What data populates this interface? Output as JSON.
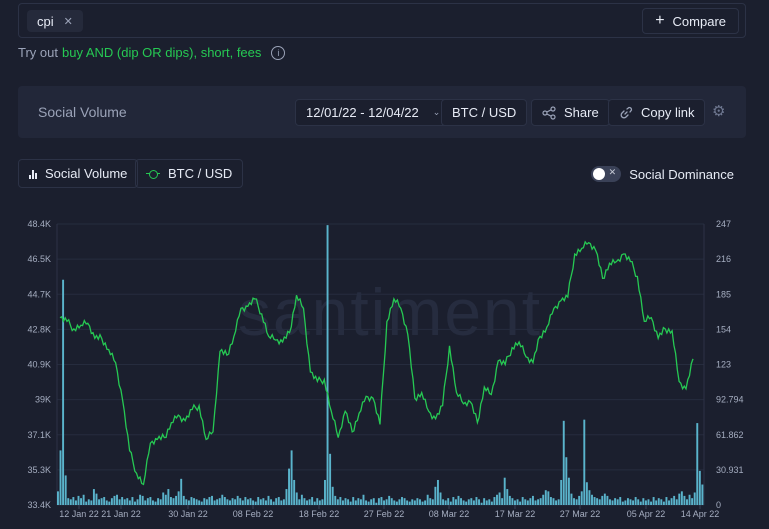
{
  "search": {
    "tag": "cpi",
    "compare_label": "Compare"
  },
  "tryout": {
    "prefix": "Try out",
    "link": "buy AND (dip OR dips), short, fees"
  },
  "panel": {
    "title": "Social Volume",
    "date_range": "12/01/22 - 12/04/22",
    "pair": "BTC / USD",
    "share_label": "Share",
    "copy_link_label": "Copy link"
  },
  "metrics": [
    {
      "label": "Social Volume"
    },
    {
      "label": "BTC / USD"
    }
  ],
  "dominance_label": "Social Dominance",
  "chart_data": {
    "type": "line",
    "title": "",
    "watermark": "santiment",
    "colors": {
      "price": "#26c953",
      "volume": "#5ab4cc"
    },
    "x_ticks": [
      "12 Jan 22",
      "21 Jan 22",
      "30 Jan 22",
      "08 Feb 22",
      "18 Feb 22",
      "27 Feb 22",
      "08 Mar 22",
      "17 Mar 22",
      "27 Mar 22",
      "05 Apr 22",
      "14 Apr 22"
    ],
    "left_axis": {
      "ticks": [
        "48.4K",
        "46.5K",
        "44.7K",
        "42.8K",
        "40.9K",
        "39K",
        "37.1K",
        "35.3K",
        "33.4K"
      ],
      "range": [
        33400,
        48400
      ]
    },
    "right_axis": {
      "ticks": [
        "247",
        "216",
        "185",
        "154",
        "123",
        "92.794",
        "61.862",
        "30.931",
        "0"
      ],
      "range": [
        0,
        247
      ]
    },
    "series": [
      {
        "name": "BTC / USD",
        "axis": "left",
        "x": [
          "12 Jan 22",
          "13 Jan 22",
          "14 Jan 22",
          "15 Jan 22",
          "16 Jan 22",
          "17 Jan 22",
          "18 Jan 22",
          "19 Jan 22",
          "20 Jan 22",
          "21 Jan 22",
          "22 Jan 22",
          "23 Jan 22",
          "24 Jan 22",
          "25 Jan 22",
          "26 Jan 22",
          "27 Jan 22",
          "28 Jan 22",
          "29 Jan 22",
          "30 Jan 22",
          "31 Jan 22",
          "01 Feb 22",
          "02 Feb 22",
          "03 Feb 22",
          "04 Feb 22",
          "05 Feb 22",
          "06 Feb 22",
          "07 Feb 22",
          "08 Feb 22",
          "09 Feb 22",
          "10 Feb 22",
          "11 Feb 22",
          "12 Feb 22",
          "13 Feb 22",
          "14 Feb 22",
          "15 Feb 22",
          "16 Feb 22",
          "17 Feb 22",
          "18 Feb 22",
          "19 Feb 22",
          "20 Feb 22",
          "21 Feb 22",
          "22 Feb 22",
          "23 Feb 22",
          "24 Feb 22",
          "25 Feb 22",
          "26 Feb 22",
          "27 Feb 22",
          "28 Feb 22",
          "01 Mar 22",
          "02 Mar 22",
          "03 Mar 22",
          "04 Mar 22",
          "05 Mar 22",
          "06 Mar 22",
          "07 Mar 22",
          "08 Mar 22",
          "09 Mar 22",
          "10 Mar 22",
          "11 Mar 22",
          "12 Mar 22",
          "13 Mar 22",
          "14 Mar 22",
          "15 Mar 22",
          "16 Mar 22",
          "17 Mar 22",
          "18 Mar 22",
          "19 Mar 22",
          "20 Mar 22",
          "21 Mar 22",
          "22 Mar 22",
          "23 Mar 22",
          "24 Mar 22",
          "25 Mar 22",
          "26 Mar 22",
          "27 Mar 22",
          "28 Mar 22",
          "29 Mar 22",
          "30 Mar 22",
          "31 Mar 22",
          "01 Apr 22",
          "02 Apr 22",
          "03 Apr 22",
          "04 Apr 22",
          "05 Apr 22",
          "06 Apr 22",
          "07 Apr 22",
          "08 Apr 22",
          "09 Apr 22",
          "10 Apr 22",
          "11 Apr 22",
          "12 Apr 22",
          "13 Apr 22"
        ],
        "values": [
          43400,
          43200,
          42800,
          43000,
          43100,
          42300,
          42300,
          41700,
          41000,
          39000,
          36300,
          35100,
          34500,
          36700,
          36900,
          37000,
          37800,
          38200,
          37900,
          38500,
          38700,
          36900,
          37300,
          41600,
          41400,
          42400,
          43900,
          44000,
          44400,
          43600,
          42400,
          42200,
          42100,
          42600,
          44600,
          43900,
          40500,
          40000,
          40100,
          38400,
          37000,
          38400,
          37300,
          38300,
          39200,
          39100,
          37700,
          43200,
          44400,
          43900,
          42500,
          39100,
          39400,
          38400,
          38000,
          38700,
          41900,
          39400,
          38800,
          38900,
          37800,
          39700,
          39300,
          41100,
          40900,
          41800,
          42100,
          41300,
          41000,
          42400,
          42900,
          43900,
          44300,
          44500,
          46800,
          47100,
          47400,
          47000,
          45500,
          46300,
          46400,
          46800,
          46400,
          45600,
          43200,
          43400,
          42300,
          42800,
          42700,
          40000,
          39600,
          41200
        ]
      },
      {
        "name": "Social Volume",
        "axis": "right",
        "type": "bar",
        "values": [
          12,
          48,
          198,
          26,
          6,
          5,
          7,
          4,
          8,
          6,
          9,
          3,
          5,
          4,
          14,
          10,
          5,
          6,
          7,
          4,
          3,
          6,
          8,
          9,
          5,
          7,
          5,
          6,
          4,
          7,
          3,
          5,
          9,
          8,
          4,
          6,
          7,
          4,
          3,
          6,
          5,
          11,
          9,
          14,
          7,
          6,
          8,
          12,
          23,
          8,
          5,
          4,
          7,
          6,
          5,
          4,
          3,
          6,
          5,
          7,
          8,
          4,
          5,
          6,
          9,
          7,
          5,
          4,
          6,
          5,
          8,
          6,
          4,
          7,
          5,
          6,
          4,
          3,
          7,
          5,
          6,
          4,
          8,
          5,
          3,
          6,
          7,
          4,
          5,
          14,
          32,
          48,
          22,
          11,
          5,
          9,
          6,
          4,
          5,
          7,
          3,
          6,
          4,
          5,
          22,
          246,
          45,
          16,
          8,
          5,
          7,
          4,
          6,
          5,
          3,
          7,
          4,
          6,
          5,
          9,
          4,
          3,
          5,
          6,
          2,
          6,
          7,
          4,
          5,
          8,
          6,
          4,
          3,
          5,
          7,
          6,
          4,
          3,
          5,
          4,
          6,
          5,
          3,
          4,
          9,
          6,
          5,
          16,
          22,
          11,
          5,
          4,
          6,
          3,
          7,
          5,
          8,
          6,
          4,
          3,
          5,
          6,
          4,
          7,
          5,
          2,
          6,
          4,
          5,
          3,
          7,
          9,
          11,
          6,
          24,
          14,
          8,
          6,
          4,
          5,
          3,
          7,
          5,
          4,
          6,
          8,
          4,
          5,
          6,
          9,
          13,
          12,
          7,
          6,
          4,
          5,
          22,
          74,
          42,
          24,
          10,
          6,
          5,
          8,
          12,
          75,
          20,
          13,
          9,
          7,
          6,
          5,
          8,
          10,
          8,
          5,
          4,
          6,
          5,
          7,
          3,
          4,
          6,
          5,
          4,
          7,
          5,
          3,
          6,
          4,
          5,
          3,
          7,
          4,
          6,
          5,
          3,
          7,
          4,
          6,
          8,
          5,
          10,
          12,
          8,
          5,
          9,
          6,
          11,
          72,
          30,
          18
        ]
      }
    ],
    "social_volume_peaks": {
      "max": 246
    },
    "legend": "top"
  }
}
